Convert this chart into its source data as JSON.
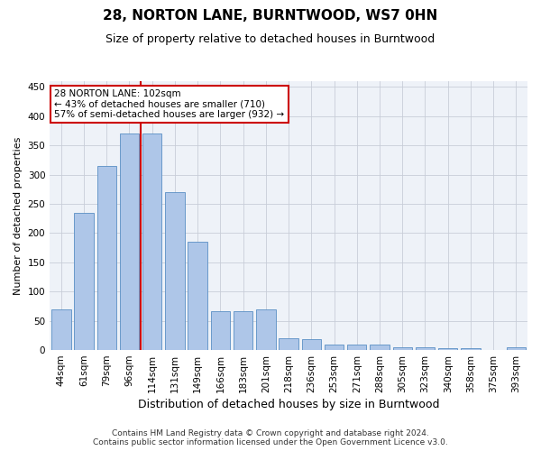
{
  "title": "28, NORTON LANE, BURNTWOOD, WS7 0HN",
  "subtitle": "Size of property relative to detached houses in Burntwood",
  "xlabel": "Distribution of detached houses by size in Burntwood",
  "ylabel": "Number of detached properties",
  "categories": [
    "44sqm",
    "61sqm",
    "79sqm",
    "96sqm",
    "114sqm",
    "131sqm",
    "149sqm",
    "166sqm",
    "183sqm",
    "201sqm",
    "218sqm",
    "236sqm",
    "253sqm",
    "271sqm",
    "288sqm",
    "305sqm",
    "323sqm",
    "340sqm",
    "358sqm",
    "375sqm",
    "393sqm"
  ],
  "values": [
    70,
    235,
    315,
    370,
    370,
    270,
    185,
    67,
    67,
    70,
    20,
    18,
    10,
    10,
    10,
    5,
    5,
    3,
    3,
    0,
    4
  ],
  "bar_color": "#aec6e8",
  "bar_edgecolor": "#5a8fc4",
  "vline_x_index": 3.5,
  "vline_color": "#cc0000",
  "annotation_text": "28 NORTON LANE: 102sqm\n← 43% of detached houses are smaller (710)\n57% of semi-detached houses are larger (932) →",
  "annotation_box_edgecolor": "#cc0000",
  "annotation_box_facecolor": "#ffffff",
  "ylim": [
    0,
    460
  ],
  "yticks": [
    0,
    50,
    100,
    150,
    200,
    250,
    300,
    350,
    400,
    450
  ],
  "footer_line1": "Contains HM Land Registry data © Crown copyright and database right 2024.",
  "footer_line2": "Contains public sector information licensed under the Open Government Licence v3.0.",
  "plot_bg_color": "#eef2f8",
  "title_fontsize": 11,
  "subtitle_fontsize": 9,
  "xlabel_fontsize": 9,
  "ylabel_fontsize": 8,
  "tick_fontsize": 7.5,
  "annotation_fontsize": 7.5,
  "footer_fontsize": 6.5
}
